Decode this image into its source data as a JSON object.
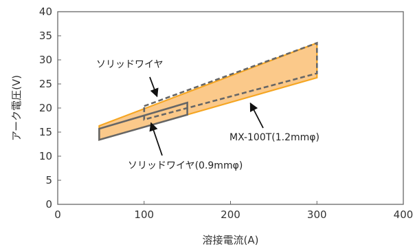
{
  "chart_data": {
    "type": "area",
    "xlabel": "溶接電流(A)",
    "ylabel": "アーク電圧(V)",
    "xlim": [
      0,
      400
    ],
    "ylim": [
      0,
      40
    ],
    "x_ticks": [
      "0",
      "100",
      "200",
      "300",
      "400"
    ],
    "y_ticks": [
      "0",
      "5",
      "10",
      "15",
      "20",
      "25",
      "30",
      "35",
      "40"
    ],
    "grid": false,
    "series": [
      {
        "name": "MX-100T(1.2mmφ)",
        "kind": "filled-range",
        "color": "#f5a623",
        "fill": "#fbc98a",
        "points": [
          [
            48,
            16.3
          ],
          [
            300,
            33.5
          ],
          [
            300,
            26.3
          ],
          [
            48,
            13.4
          ]
        ]
      },
      {
        "name": "ソリッドワイヤ",
        "kind": "dashed-outline",
        "color": "#666666",
        "points": [
          [
            100,
            20.4
          ],
          [
            300,
            33.5
          ],
          [
            300,
            27.2
          ],
          [
            100,
            17.6
          ]
        ]
      },
      {
        "name": "ソリッドワイヤ(0.9mmφ)",
        "kind": "outline",
        "color": "#666666",
        "points": [
          [
            48,
            15.7
          ],
          [
            150,
            21.1
          ],
          [
            150,
            18.6
          ],
          [
            48,
            13.4
          ]
        ]
      }
    ],
    "annotations": [
      {
        "text": "ソリッドワイヤ",
        "arrow_to": [
          115,
          22.4
        ]
      },
      {
        "text": "MX-100T(1.2mmφ)",
        "arrow_to": [
          223,
          21.0
        ]
      },
      {
        "text": "ソリッドワイヤ(0.9mmφ)",
        "arrow_to": [
          108,
          16.9
        ]
      }
    ]
  }
}
